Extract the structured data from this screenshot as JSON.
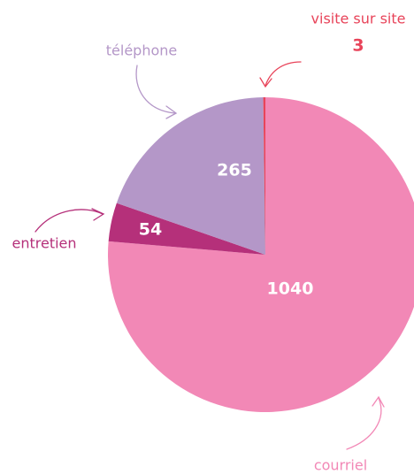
{
  "chart_data": {
    "type": "pie",
    "categories": [
      "courriel",
      "entretien",
      "téléphone",
      "visite sur site"
    ],
    "values": [
      1040,
      54,
      265,
      3
    ],
    "colors": [
      "#f288b6",
      "#b5307a",
      "#b497c8",
      "#e8445a"
    ]
  }
}
